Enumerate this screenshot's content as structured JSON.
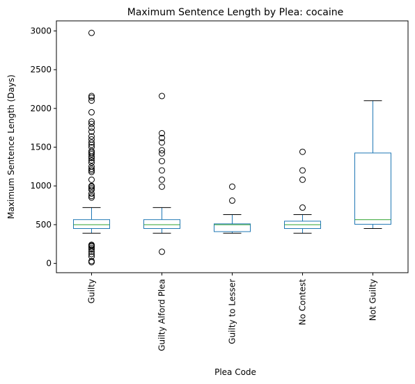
{
  "chart_data": {
    "type": "box",
    "title": "Maximum Sentence Length by Plea: cocaine",
    "xlabel": "Plea Code",
    "ylabel": "Maximum Sentence Length (Days)",
    "ylim": [
      -120,
      3130
    ],
    "yticks": [
      0,
      500,
      1000,
      1500,
      2000,
      2500,
      3000
    ],
    "categories": [
      "Guilty",
      "Guilty Alford Plea",
      "Guilty to Lesser",
      "No Contest",
      "Not Guilty"
    ],
    "boxes": [
      {
        "category": "Guilty",
        "whisker_low": 390,
        "q1": 450,
        "median": 500,
        "q3": 565,
        "whisker_high": 720,
        "outliers": [
          2975,
          2160,
          2140,
          2100,
          1950,
          1830,
          1800,
          1750,
          1700,
          1640,
          1600,
          1560,
          1530,
          1500,
          1450,
          1430,
          1410,
          1380,
          1360,
          1330,
          1300,
          1250,
          1220,
          1200,
          1180,
          1080,
          1000,
          990,
          970,
          950,
          900,
          870,
          850,
          240,
          230,
          220,
          200,
          180,
          150,
          120,
          90,
          30,
          15
        ]
      },
      {
        "category": "Guilty Alford Plea",
        "whisker_low": 390,
        "q1": 450,
        "median": 500,
        "q3": 565,
        "whisker_high": 720,
        "outliers": [
          2160,
          1680,
          1620,
          1560,
          1460,
          1420,
          1320,
          1200,
          1080,
          990,
          150
        ]
      },
      {
        "category": "Guilty to Lesser",
        "whisker_low": 390,
        "q1": 410,
        "median": 500,
        "q3": 510,
        "whisker_high": 630,
        "outliers": [
          990,
          810
        ]
      },
      {
        "category": "No Contest",
        "whisker_low": 390,
        "q1": 450,
        "median": 500,
        "q3": 545,
        "whisker_high": 630,
        "outliers": [
          1440,
          1200,
          1080,
          720
        ]
      },
      {
        "category": "Not Guilty",
        "whisker_low": 450,
        "q1": 505,
        "median": 565,
        "q3": 1425,
        "whisker_high": 2100,
        "outliers": []
      }
    ],
    "colors": {
      "box": "#1f77b4",
      "median": "#2ca02c",
      "whisker": "#000000",
      "outlier": "#000000"
    },
    "grid": false,
    "legend": "none"
  }
}
